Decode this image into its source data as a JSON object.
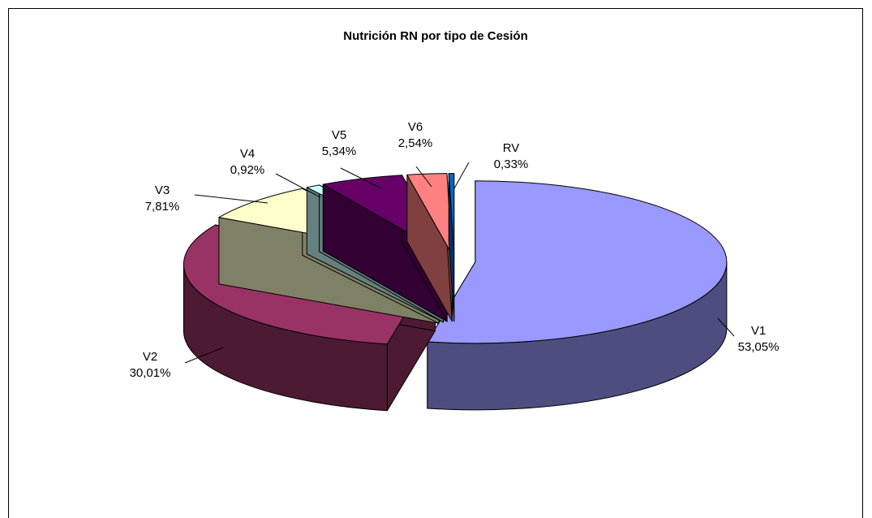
{
  "chart_data": {
    "type": "pie",
    "title": "Nutrición RN por tipo de Cesión",
    "labels": [
      "V1",
      "V2",
      "V3",
      "V4",
      "V5",
      "V6",
      "RV"
    ],
    "values": [
      53.05,
      30.01,
      7.81,
      0.92,
      5.34,
      2.54,
      0.33
    ],
    "value_labels": [
      "53,05%",
      "30,01%",
      "7,81%",
      "0,92%",
      "5,34%",
      "2,54%",
      "0,33%"
    ],
    "colors": [
      "#9999ff",
      "#993366",
      "#ffffcc",
      "#ccffff",
      "#660066",
      "#ff8080",
      "#0066cc"
    ]
  }
}
